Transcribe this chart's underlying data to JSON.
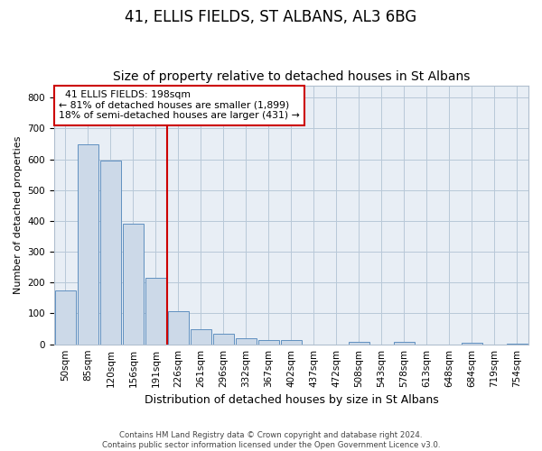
{
  "title": "41, ELLIS FIELDS, ST ALBANS, AL3 6BG",
  "subtitle": "Size of property relative to detached houses in St Albans",
  "xlabel": "Distribution of detached houses by size in St Albans",
  "ylabel": "Number of detached properties",
  "bar_labels": [
    "50sqm",
    "85sqm",
    "120sqm",
    "156sqm",
    "191sqm",
    "226sqm",
    "261sqm",
    "296sqm",
    "332sqm",
    "367sqm",
    "402sqm",
    "437sqm",
    "472sqm",
    "508sqm",
    "543sqm",
    "578sqm",
    "613sqm",
    "648sqm",
    "684sqm",
    "719sqm",
    "754sqm"
  ],
  "bar_heights": [
    175,
    650,
    595,
    390,
    215,
    107,
    50,
    35,
    20,
    15,
    15,
    0,
    0,
    7,
    0,
    7,
    0,
    0,
    5,
    0,
    2
  ],
  "bar_color": "#ccd9e8",
  "bar_edge_color": "#6090c0",
  "ylim": [
    0,
    840
  ],
  "yticks": [
    0,
    100,
    200,
    300,
    400,
    500,
    600,
    700,
    800
  ],
  "vline_x_index": 4.5,
  "vline_color": "#cc0000",
  "annotation_line1": "  41 ELLIS FIELDS: 198sqm",
  "annotation_line2": "← 81% of detached houses are smaller (1,899)",
  "annotation_line3": "18% of semi-detached houses are larger (431) →",
  "footer_line1": "Contains HM Land Registry data © Crown copyright and database right 2024.",
  "footer_line2": "Contains public sector information licensed under the Open Government Licence v3.0.",
  "plot_bg_color": "#e8eef5",
  "title_fontsize": 12,
  "subtitle_fontsize": 10,
  "ylabel_fontsize": 8,
  "xlabel_fontsize": 9,
  "tick_fontsize": 7.5
}
